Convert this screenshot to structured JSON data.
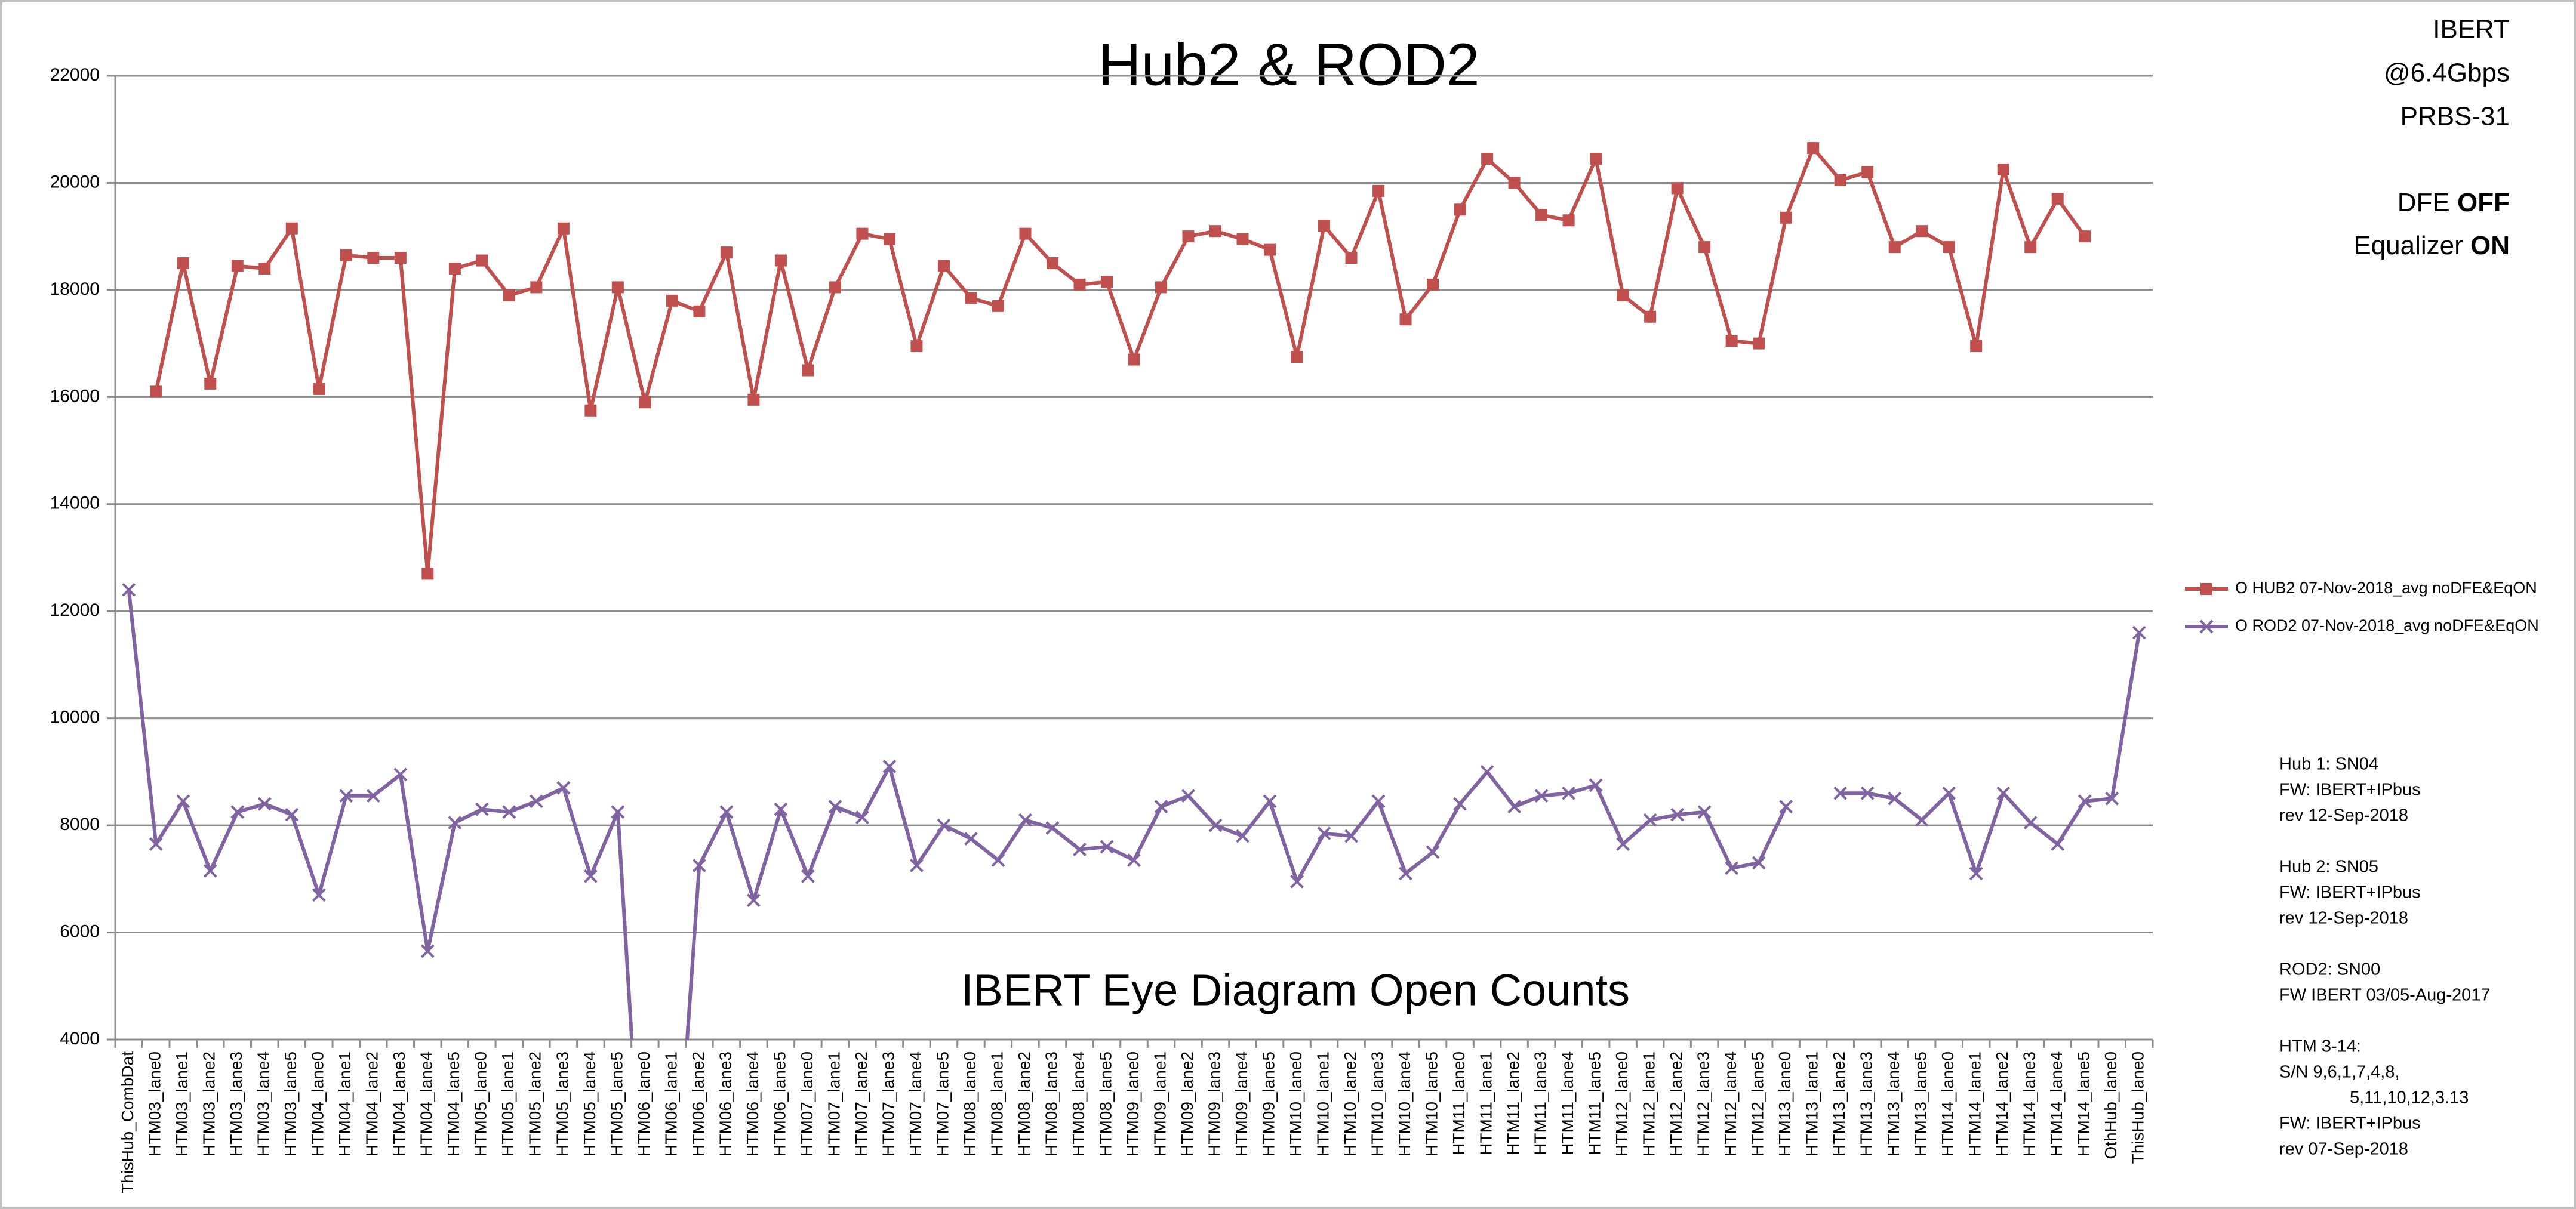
{
  "chart_data": {
    "type": "line",
    "title": "Hub2 & ROD2",
    "subtitle": "IBERT Eye Diagram Open Counts",
    "categories": [
      "ThisHub_CombDat",
      "HTM03_lane0",
      "HTM03_lane1",
      "HTM03_lane2",
      "HTM03_lane3",
      "HTM03_lane4",
      "HTM03_lane5",
      "HTM04_lane0",
      "HTM04_lane1",
      "HTM04_lane2",
      "HTM04_lane3",
      "HTM04_lane4",
      "HTM04_lane5",
      "HTM05_lane0",
      "HTM05_lane1",
      "HTM05_lane2",
      "HTM05_lane3",
      "HTM05_lane4",
      "HTM05_lane5",
      "HTM06_lane0",
      "HTM06_lane1",
      "HTM06_lane2",
      "HTM06_lane3",
      "HTM06_lane4",
      "HTM06_lane5",
      "HTM07_lane0",
      "HTM07_lane1",
      "HTM07_lane2",
      "HTM07_lane3",
      "HTM07_lane4",
      "HTM07_lane5",
      "HTM08_lane0",
      "HTM08_lane1",
      "HTM08_lane2",
      "HTM08_lane3",
      "HTM08_lane4",
      "HTM08_lane5",
      "HTM09_lane0",
      "HTM09_lane1",
      "HTM09_lane2",
      "HTM09_lane3",
      "HTM09_lane4",
      "HTM09_lane5",
      "HTM10_lane0",
      "HTM10_lane1",
      "HTM10_lane2",
      "HTM10_lane3",
      "HTM10_lane4",
      "HTM10_lane5",
      "HTM11_lane0",
      "HTM11_lane1",
      "HTM11_lane2",
      "HTM11_lane3",
      "HTM11_lane4",
      "HTM11_lane5",
      "HTM12_lane0",
      "HTM12_lane1",
      "HTM12_lane2",
      "HTM12_lane3",
      "HTM12_lane4",
      "HTM12_lane5",
      "HTM13_lane0",
      "HTM13_lane1",
      "HTM13_lane2",
      "HTM13_lane3",
      "HTM13_lane4",
      "HTM13_lane5",
      "HTM14_lane0",
      "HTM14_lane1",
      "HTM14_lane2",
      "HTM14_lane3",
      "HTM14_lane4",
      "HTM14_lane5",
      "OthHub_lane0",
      "ThisHub_lane0"
    ],
    "series": [
      {
        "name": "O HUB2  07-Nov-2018_avg noDFE&EqON",
        "color": "#c0504d",
        "marker": "square",
        "values": [
          null,
          16100,
          18500,
          16250,
          18450,
          18400,
          19150,
          16150,
          18650,
          18600,
          18600,
          12700,
          18400,
          18550,
          17900,
          18050,
          19150,
          15750,
          18050,
          15900,
          17800,
          17600,
          18700,
          15950,
          18550,
          16500,
          18050,
          19050,
          18950,
          16950,
          18450,
          17850,
          17700,
          19050,
          18500,
          18100,
          18150,
          16700,
          18050,
          19000,
          19100,
          18950,
          18750,
          16750,
          19200,
          18600,
          19850,
          17450,
          18100,
          19500,
          20450,
          20000,
          19400,
          19300,
          20450,
          17900,
          17500,
          19900,
          18800,
          17050,
          17000,
          19350,
          20650,
          20050,
          20200,
          18800,
          19100,
          18800,
          16950,
          20250,
          18800,
          19700,
          19000,
          null,
          null
        ]
      },
      {
        "name": "O ROD2 07-Nov-2018_avg noDFE&EqON",
        "color": "#8064a2",
        "marker": "x",
        "values": [
          12400,
          7650,
          8450,
          7150,
          8250,
          8400,
          8200,
          6700,
          8550,
          8550,
          8950,
          5650,
          8050,
          8300,
          8250,
          8450,
          8700,
          7050,
          8250,
          0,
          0,
          7250,
          8250,
          6600,
          8300,
          7050,
          8350,
          8150,
          9100,
          7250,
          8000,
          7750,
          7350,
          8100,
          7950,
          7550,
          7600,
          7350,
          8350,
          8550,
          8000,
          7800,
          8450,
          6950,
          7850,
          7800,
          8450,
          7100,
          7500,
          8400,
          9000,
          8350,
          8550,
          8600,
          8750,
          7650,
          8100,
          8200,
          8250,
          7200,
          7300,
          8350,
          null,
          8600,
          8600,
          8500,
          8100,
          8600,
          7100,
          8600,
          8050,
          7650,
          8450,
          8500,
          11600
        ]
      }
    ],
    "ylim": [
      4000,
      22000
    ],
    "yticks": [
      4000,
      6000,
      8000,
      10000,
      12000,
      14000,
      16000,
      18000,
      20000,
      22000
    ],
    "grid": true,
    "legend_position": "right",
    "info_lines": [
      "IBERT",
      "@6.4Gbps",
      "PRBS-31"
    ],
    "settings_lines": [
      [
        "DFE",
        "OFF"
      ],
      [
        "Equalizer",
        "ON"
      ]
    ],
    "notes": [
      [
        "Hub 1:  SN04",
        "FW: IBERT+IPbus",
        "rev  12-Sep-2018"
      ],
      [
        "Hub 2:  SN05",
        "FW: IBERT+IPbus",
        "rev  12-Sep-2018"
      ],
      [
        "ROD2: SN00",
        "FW IBERT  03/05-Aug-2017"
      ],
      [
        "HTM 3-14:",
        "S/N  9,6,1,7,4,8,",
        "5,11,10,12,3.13",
        "FW: IBERT+IPbus",
        "rev  07-Sep-2018"
      ]
    ]
  }
}
